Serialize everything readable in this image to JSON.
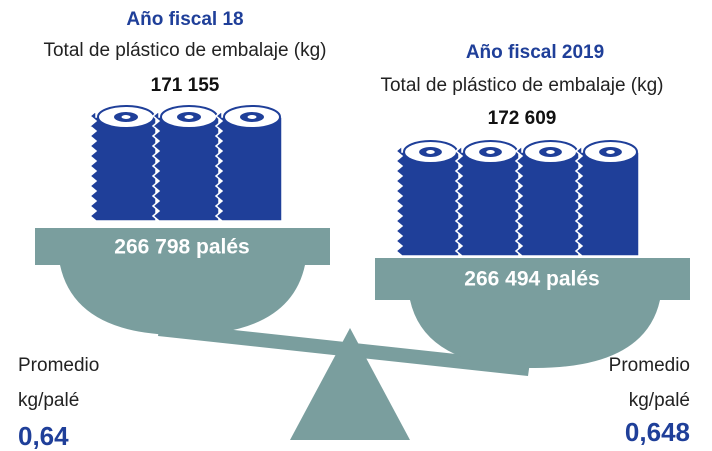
{
  "left": {
    "title": "Año fiscal 18",
    "subtitle": "Total de plástico de embalaje (kg)",
    "total": "171 155",
    "pallets": "266 798 palés",
    "avg_label_1": "Promedio",
    "avg_label_2": "kg/palé",
    "avg_value": "0,64"
  },
  "right": {
    "title": "Año fiscal 2019",
    "subtitle": "Total de plástico de embalaje (kg)",
    "total": "172 609",
    "pallets": "266 494 palés",
    "avg_label_1": "Promedio",
    "avg_label_2": "kg/palé",
    "avg_value": "0,648"
  }
}
